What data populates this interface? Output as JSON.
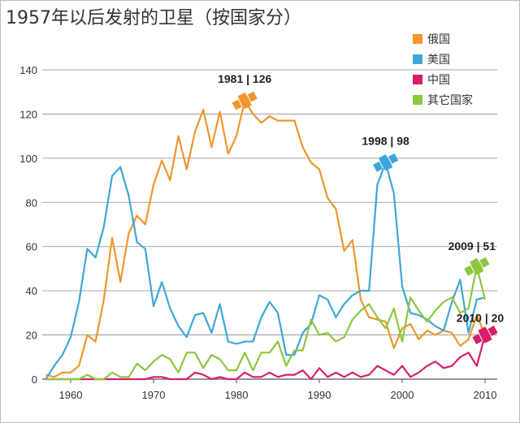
{
  "title": "1957年以后发射的卫星（按国家分）",
  "chart_data": {
    "type": "line",
    "title": "1957年以后发射的卫星（按国家分）",
    "xlabel": "",
    "ylabel": "",
    "xlim": [
      1957,
      2011
    ],
    "ylim": [
      0,
      140
    ],
    "grid": true,
    "legend_position": "top-right",
    "xticks": [
      1960,
      1970,
      1980,
      1990,
      2000,
      2010
    ],
    "yticks": [
      0,
      20,
      40,
      60,
      80,
      100,
      120,
      140
    ],
    "series": [
      {
        "name": "俄国",
        "color": "#f0962c",
        "x": [
          1957,
          1958,
          1959,
          1960,
          1961,
          1962,
          1963,
          1964,
          1965,
          1966,
          1967,
          1968,
          1969,
          1970,
          1971,
          1972,
          1973,
          1974,
          1975,
          1976,
          1977,
          1978,
          1979,
          1980,
          1981,
          1982,
          1983,
          1984,
          1985,
          1986,
          1987,
          1988,
          1989,
          1990,
          1991,
          1992,
          1993,
          1994,
          1995,
          1996,
          1997,
          1998,
          1999,
          2000,
          2001,
          2002,
          2003,
          2004,
          2005,
          2006,
          2007,
          2008,
          2009,
          2010
        ],
        "values": [
          2,
          1,
          3,
          3,
          6,
          20,
          17,
          36,
          64,
          44,
          66,
          74,
          70,
          88,
          99,
          90,
          110,
          95,
          112,
          122,
          105,
          121,
          102,
          110,
          126,
          120,
          116,
          119,
          117,
          117,
          117,
          105,
          98,
          95,
          82,
          77,
          58,
          63,
          36,
          28,
          27,
          26,
          14,
          23,
          25,
          18,
          22,
          20,
          22,
          21,
          15,
          18,
          29,
          20
        ]
      },
      {
        "name": "美国",
        "color": "#3ea6d8",
        "x": [
          1957,
          1958,
          1959,
          1960,
          1961,
          1962,
          1963,
          1964,
          1965,
          1966,
          1967,
          1968,
          1969,
          1970,
          1971,
          1972,
          1973,
          1974,
          1975,
          1976,
          1977,
          1978,
          1979,
          1980,
          1981,
          1982,
          1983,
          1984,
          1985,
          1986,
          1987,
          1988,
          1989,
          1990,
          1991,
          1992,
          1993,
          1994,
          1995,
          1996,
          1997,
          1998,
          1999,
          2000,
          2001,
          2002,
          2003,
          2004,
          2005,
          2006,
          2007,
          2008,
          2009,
          2010
        ],
        "values": [
          0,
          6,
          11,
          19,
          35,
          59,
          55,
          69,
          92,
          96,
          83,
          62,
          59,
          33,
          44,
          32,
          24,
          19,
          29,
          30,
          21,
          34,
          17,
          16,
          17,
          17,
          28,
          35,
          30,
          11,
          11,
          21,
          25,
          38,
          36,
          28,
          34,
          38,
          40,
          40,
          88,
          98,
          84,
          42,
          30,
          29,
          27,
          24,
          22,
          35,
          45,
          21,
          36,
          37
        ]
      },
      {
        "name": "中国",
        "color": "#d81e6b",
        "x": [
          1957,
          1958,
          1959,
          1960,
          1961,
          1962,
          1963,
          1964,
          1965,
          1966,
          1967,
          1968,
          1969,
          1970,
          1971,
          1972,
          1973,
          1974,
          1975,
          1976,
          1977,
          1978,
          1979,
          1980,
          1981,
          1982,
          1983,
          1984,
          1985,
          1986,
          1987,
          1988,
          1989,
          1990,
          1991,
          1992,
          1993,
          1994,
          1995,
          1996,
          1997,
          1998,
          1999,
          2000,
          2001,
          2002,
          2003,
          2004,
          2005,
          2006,
          2007,
          2008,
          2009,
          2010
        ],
        "values": [
          0,
          0,
          0,
          0,
          0,
          0,
          0,
          0,
          0,
          0,
          0,
          0,
          0,
          1,
          1,
          0,
          0,
          0,
          3,
          2,
          0,
          1,
          0,
          0,
          3,
          1,
          1,
          3,
          1,
          2,
          2,
          4,
          0,
          5,
          1,
          3,
          1,
          3,
          1,
          2,
          6,
          4,
          2,
          6,
          1,
          3,
          6,
          8,
          5,
          6,
          10,
          12,
          6,
          20
        ]
      },
      {
        "name": "其它国家",
        "color": "#8dc63f",
        "x": [
          1957,
          1958,
          1959,
          1960,
          1961,
          1962,
          1963,
          1964,
          1965,
          1966,
          1967,
          1968,
          1969,
          1970,
          1971,
          1972,
          1973,
          1974,
          1975,
          1976,
          1977,
          1978,
          1979,
          1980,
          1981,
          1982,
          1983,
          1984,
          1985,
          1986,
          1987,
          1988,
          1989,
          1990,
          1991,
          1992,
          1993,
          1994,
          1995,
          1996,
          1997,
          1998,
          1999,
          2000,
          2001,
          2002,
          2003,
          2004,
          2005,
          2006,
          2007,
          2008,
          2009,
          2010
        ],
        "values": [
          0,
          0,
          0,
          0,
          0,
          2,
          0,
          0,
          3,
          1,
          1,
          7,
          4,
          8,
          11,
          9,
          3,
          12,
          12,
          5,
          11,
          9,
          4,
          4,
          12,
          4,
          12,
          12,
          17,
          6,
          13,
          13,
          27,
          20,
          21,
          17,
          19,
          27,
          31,
          34,
          28,
          23,
          32,
          17,
          37,
          31,
          26,
          31,
          35,
          37,
          30,
          32,
          51,
          36
        ]
      }
    ],
    "annotations": [
      {
        "label": "1981 | 126",
        "x": 1981,
        "y": 126,
        "series": "俄国"
      },
      {
        "label": "1998 | 98",
        "x": 1998,
        "y": 98,
        "series": "美国"
      },
      {
        "label": "2009 | 51",
        "x": 2009,
        "y": 51,
        "series": "其它国家"
      },
      {
        "label": "2010 | 20",
        "x": 2010,
        "y": 20,
        "series": "中国"
      }
    ]
  }
}
